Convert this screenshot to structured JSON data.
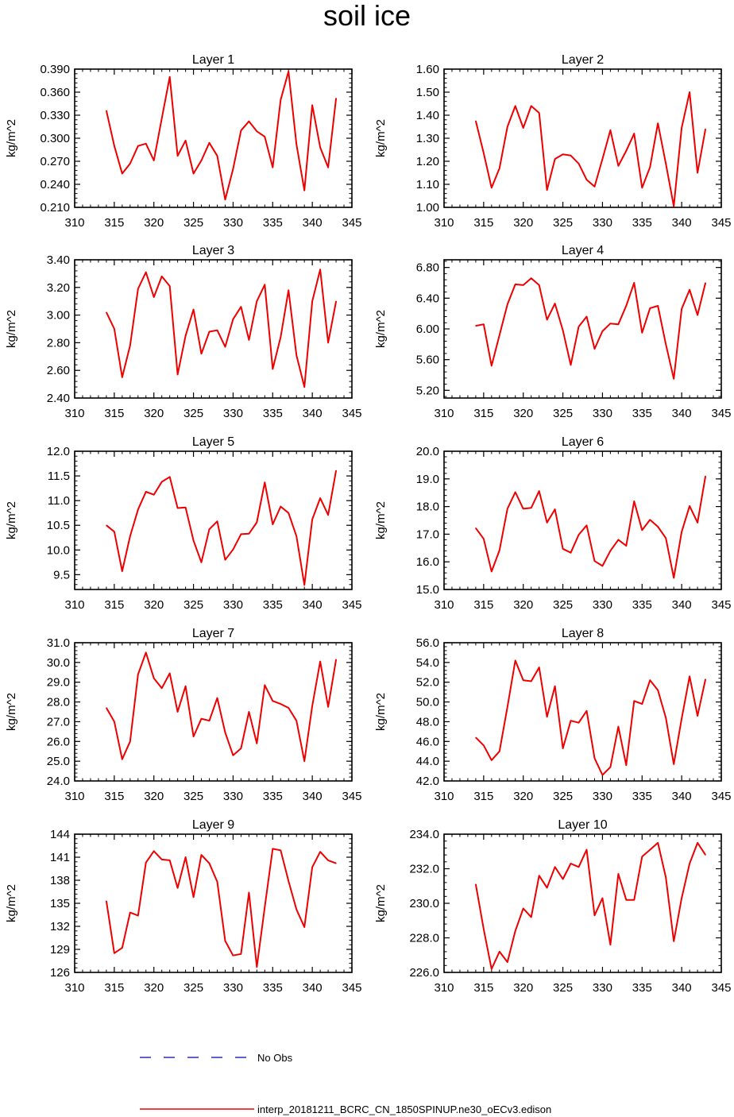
{
  "title": "soil ice",
  "colors": {
    "model_line": "#ee0000",
    "obs_line": "#0000aa",
    "axis": "#000000"
  },
  "legend": {
    "obs_label": "No Obs",
    "model_label": "interp_20181211_BCRC_CN_1850SPINUP.ne30_oECv3.edison"
  },
  "chart_data": [
    {
      "type": "line",
      "title": "Layer 1",
      "xlabel": "",
      "ylabel": "kg/m^2",
      "xlim": [
        310,
        345
      ],
      "xticks": [
        310,
        315,
        320,
        325,
        330,
        335,
        340,
        345
      ],
      "ylim": [
        0.21,
        0.39
      ],
      "yticks": [
        0.21,
        0.24,
        0.27,
        0.3,
        0.33,
        0.36,
        0.39
      ],
      "ydecimals": 3,
      "series": [
        {
          "x": [
            314,
            315,
            316,
            317,
            318,
            319,
            320,
            321,
            322,
            323,
            324,
            325,
            326,
            327,
            328,
            329,
            330,
            331,
            332,
            333,
            334,
            335,
            336,
            337,
            338,
            339,
            340,
            341,
            342,
            343
          ],
          "values": [
            0.336,
            0.29,
            0.254,
            0.267,
            0.29,
            0.293,
            0.271,
            0.326,
            0.38,
            0.277,
            0.297,
            0.254,
            0.271,
            0.294,
            0.277,
            0.22,
            0.26,
            0.31,
            0.322,
            0.309,
            0.302,
            0.262,
            0.35,
            0.387,
            0.292,
            0.232,
            0.343,
            0.288,
            0.262,
            0.352
          ]
        }
      ]
    },
    {
      "type": "line",
      "title": "Layer 2",
      "xlabel": "",
      "ylabel": "kg/m^2",
      "xlim": [
        310,
        345
      ],
      "xticks": [
        310,
        315,
        320,
        325,
        330,
        335,
        340,
        345
      ],
      "ylim": [
        1.0,
        1.6
      ],
      "yticks": [
        1.0,
        1.1,
        1.2,
        1.3,
        1.4,
        1.5,
        1.6
      ],
      "ydecimals": 2,
      "series": [
        {
          "x": [
            314,
            315,
            316,
            317,
            318,
            319,
            320,
            321,
            322,
            323,
            324,
            325,
            326,
            327,
            328,
            329,
            330,
            331,
            332,
            333,
            334,
            335,
            336,
            337,
            338,
            339,
            340,
            341,
            342,
            343
          ],
          "values": [
            1.375,
            1.235,
            1.085,
            1.17,
            1.35,
            1.44,
            1.345,
            1.44,
            1.41,
            1.075,
            1.21,
            1.23,
            1.225,
            1.19,
            1.12,
            1.09,
            1.21,
            1.335,
            1.18,
            1.245,
            1.32,
            1.085,
            1.175,
            1.365,
            1.19,
            1.005,
            1.345,
            1.5,
            1.15,
            1.34
          ]
        }
      ]
    },
    {
      "type": "line",
      "title": "Layer 3",
      "xlabel": "",
      "ylabel": "kg/m^2",
      "xlim": [
        310,
        345
      ],
      "xticks": [
        310,
        315,
        320,
        325,
        330,
        335,
        340,
        345
      ],
      "ylim": [
        2.4,
        3.4
      ],
      "yticks": [
        2.4,
        2.6,
        2.8,
        3.0,
        3.2,
        3.4
      ],
      "ydecimals": 2,
      "series": [
        {
          "x": [
            314,
            315,
            316,
            317,
            318,
            319,
            320,
            321,
            322,
            323,
            324,
            325,
            326,
            327,
            328,
            329,
            330,
            331,
            332,
            333,
            334,
            335,
            336,
            337,
            338,
            339,
            340,
            341,
            342,
            343
          ],
          "values": [
            3.02,
            2.9,
            2.55,
            2.78,
            3.19,
            3.31,
            3.13,
            3.28,
            3.21,
            2.57,
            2.85,
            3.04,
            2.72,
            2.88,
            2.89,
            2.77,
            2.97,
            3.06,
            2.82,
            3.1,
            3.22,
            2.61,
            2.84,
            3.18,
            2.71,
            2.48,
            3.1,
            3.33,
            2.8,
            3.1
          ]
        }
      ]
    },
    {
      "type": "line",
      "title": "Layer 4",
      "xlabel": "",
      "ylabel": "kg/m^2",
      "xlim": [
        310,
        345
      ],
      "xticks": [
        310,
        315,
        320,
        325,
        330,
        335,
        340,
        345
      ],
      "ylim": [
        5.1,
        6.9
      ],
      "yticks": [
        5.2,
        5.6,
        6.0,
        6.4,
        6.8
      ],
      "ydecimals": 2,
      "series": [
        {
          "x": [
            314,
            315,
            316,
            317,
            318,
            319,
            320,
            321,
            322,
            323,
            324,
            325,
            326,
            327,
            328,
            329,
            330,
            331,
            332,
            333,
            334,
            335,
            336,
            337,
            338,
            339,
            340,
            341,
            342,
            343
          ],
          "values": [
            6.04,
            6.06,
            5.52,
            5.92,
            6.32,
            6.58,
            6.57,
            6.66,
            6.57,
            6.12,
            6.33,
            5.98,
            5.53,
            6.03,
            6.16,
            5.74,
            5.97,
            6.07,
            6.06,
            6.3,
            6.6,
            5.95,
            6.27,
            6.3,
            5.8,
            5.35,
            6.26,
            6.51,
            6.18,
            6.6
          ]
        }
      ]
    },
    {
      "type": "line",
      "title": "Layer 5",
      "xlabel": "",
      "ylabel": "kg/m^2",
      "xlim": [
        310,
        345
      ],
      "xticks": [
        310,
        315,
        320,
        325,
        330,
        335,
        340,
        345
      ],
      "ylim": [
        9.2,
        12.0
      ],
      "yticks": [
        9.5,
        10.0,
        10.5,
        11.0,
        11.5,
        12.0
      ],
      "ydecimals": 1,
      "series": [
        {
          "x": [
            314,
            315,
            316,
            317,
            318,
            319,
            320,
            321,
            322,
            323,
            324,
            325,
            326,
            327,
            328,
            329,
            330,
            331,
            332,
            333,
            334,
            335,
            336,
            337,
            338,
            339,
            340,
            341,
            342,
            343
          ],
          "values": [
            10.5,
            10.37,
            9.57,
            10.28,
            10.82,
            11.18,
            11.12,
            11.38,
            11.48,
            10.85,
            10.86,
            10.19,
            9.75,
            10.42,
            10.58,
            9.8,
            10.01,
            10.32,
            10.33,
            10.56,
            11.37,
            10.52,
            10.88,
            10.75,
            10.28,
            9.29,
            10.62,
            11.05,
            10.71,
            11.61
          ]
        }
      ]
    },
    {
      "type": "line",
      "title": "Layer 6",
      "xlabel": "",
      "ylabel": "kg/m^2",
      "xlim": [
        310,
        345
      ],
      "xticks": [
        310,
        315,
        320,
        325,
        330,
        335,
        340,
        345
      ],
      "ylim": [
        15.0,
        20.0
      ],
      "yticks": [
        15.0,
        16.0,
        17.0,
        18.0,
        19.0,
        20.0
      ],
      "ydecimals": 1,
      "series": [
        {
          "x": [
            314,
            315,
            316,
            317,
            318,
            319,
            320,
            321,
            322,
            323,
            324,
            325,
            326,
            327,
            328,
            329,
            330,
            331,
            332,
            333,
            334,
            335,
            336,
            337,
            338,
            339,
            340,
            341,
            342,
            343
          ],
          "values": [
            17.22,
            16.83,
            15.65,
            16.42,
            17.92,
            18.52,
            17.92,
            17.95,
            18.56,
            17.42,
            17.9,
            16.47,
            16.33,
            16.98,
            17.32,
            16.03,
            15.85,
            16.4,
            16.8,
            16.58,
            18.19,
            17.15,
            17.52,
            17.27,
            16.86,
            15.42,
            17.08,
            18.02,
            17.42,
            19.1
          ]
        }
      ]
    },
    {
      "type": "line",
      "title": "Layer 7",
      "xlabel": "",
      "ylabel": "kg/m^2",
      "xlim": [
        310,
        345
      ],
      "xticks": [
        310,
        315,
        320,
        325,
        330,
        335,
        340,
        345
      ],
      "ylim": [
        24.0,
        31.0
      ],
      "yticks": [
        24.0,
        25.0,
        26.0,
        27.0,
        28.0,
        29.0,
        30.0,
        31.0
      ],
      "ydecimals": 1,
      "series": [
        {
          "x": [
            314,
            315,
            316,
            317,
            318,
            319,
            320,
            321,
            322,
            323,
            324,
            325,
            326,
            327,
            328,
            329,
            330,
            331,
            332,
            333,
            334,
            335,
            336,
            337,
            338,
            339,
            340,
            341,
            342,
            343
          ],
          "values": [
            27.7,
            27.0,
            25.1,
            26.0,
            29.4,
            30.5,
            29.2,
            28.7,
            29.45,
            27.5,
            28.8,
            26.25,
            27.15,
            27.05,
            28.2,
            26.45,
            25.3,
            25.65,
            27.5,
            25.9,
            28.85,
            28.05,
            27.9,
            27.7,
            27.05,
            25.0,
            27.8,
            30.05,
            27.75,
            30.15
          ]
        }
      ]
    },
    {
      "type": "line",
      "title": "Layer 8",
      "xlabel": "",
      "ylabel": "kg/m^2",
      "xlim": [
        310,
        345
      ],
      "xticks": [
        310,
        315,
        320,
        325,
        330,
        335,
        340,
        345
      ],
      "ylim": [
        42.0,
        56.0
      ],
      "yticks": [
        42.0,
        44.0,
        46.0,
        48.0,
        50.0,
        52.0,
        54.0,
        56.0
      ],
      "ydecimals": 1,
      "series": [
        {
          "x": [
            314,
            315,
            316,
            317,
            318,
            319,
            320,
            321,
            322,
            323,
            324,
            325,
            326,
            327,
            328,
            329,
            330,
            331,
            332,
            333,
            334,
            335,
            336,
            337,
            338,
            339,
            340,
            341,
            342,
            343
          ],
          "values": [
            46.4,
            45.6,
            44.1,
            45.0,
            49.5,
            54.2,
            52.2,
            52.1,
            53.5,
            48.5,
            51.6,
            45.3,
            48.1,
            47.9,
            49.1,
            44.3,
            42.6,
            43.4,
            47.5,
            43.6,
            50.1,
            49.8,
            52.2,
            51.2,
            48.4,
            43.7,
            48.3,
            52.6,
            48.6,
            52.3
          ]
        }
      ]
    },
    {
      "type": "line",
      "title": "Layer 9",
      "xlabel": "",
      "ylabel": "kg/m^2",
      "xlim": [
        310,
        345
      ],
      "xticks": [
        310,
        315,
        320,
        325,
        330,
        335,
        340,
        345
      ],
      "ylim": [
        126,
        144
      ],
      "yticks": [
        126,
        129,
        132,
        135,
        138,
        141,
        144
      ],
      "ydecimals": 0,
      "series": [
        {
          "x": [
            314,
            315,
            316,
            317,
            318,
            319,
            320,
            321,
            322,
            323,
            324,
            325,
            326,
            327,
            328,
            329,
            330,
            331,
            332,
            333,
            334,
            335,
            336,
            337,
            338,
            339,
            340,
            341,
            342,
            343
          ],
          "values": [
            135.3,
            128.5,
            129.2,
            133.8,
            133.4,
            140.3,
            141.8,
            140.7,
            140.6,
            137.0,
            141.0,
            135.8,
            141.3,
            140.2,
            137.8,
            130.1,
            128.2,
            128.4,
            136.4,
            126.7,
            134.5,
            142.1,
            141.9,
            137.9,
            134.2,
            131.9,
            139.7,
            141.7,
            140.6,
            140.2
          ]
        }
      ]
    },
    {
      "type": "line",
      "title": "Layer 10",
      "xlabel": "",
      "ylabel": "kg/m^2",
      "xlim": [
        310,
        345
      ],
      "xticks": [
        310,
        315,
        320,
        325,
        330,
        335,
        340,
        345
      ],
      "ylim": [
        226.0,
        234.0
      ],
      "yticks": [
        226.0,
        228.0,
        230.0,
        232.0,
        234.0
      ],
      "ydecimals": 1,
      "series": [
        {
          "x": [
            314,
            315,
            316,
            317,
            318,
            319,
            320,
            321,
            322,
            323,
            324,
            325,
            326,
            327,
            328,
            329,
            330,
            331,
            332,
            333,
            334,
            335,
            336,
            337,
            338,
            339,
            340,
            341,
            342,
            343
          ],
          "values": [
            231.1,
            228.5,
            226.2,
            227.2,
            226.6,
            228.4,
            229.7,
            229.2,
            231.6,
            230.9,
            232.1,
            231.4,
            232.3,
            232.1,
            233.1,
            229.3,
            230.3,
            227.6,
            231.7,
            230.2,
            230.2,
            232.7,
            233.1,
            233.5,
            231.5,
            227.8,
            230.3,
            232.3,
            233.5,
            232.8
          ]
        }
      ]
    }
  ]
}
